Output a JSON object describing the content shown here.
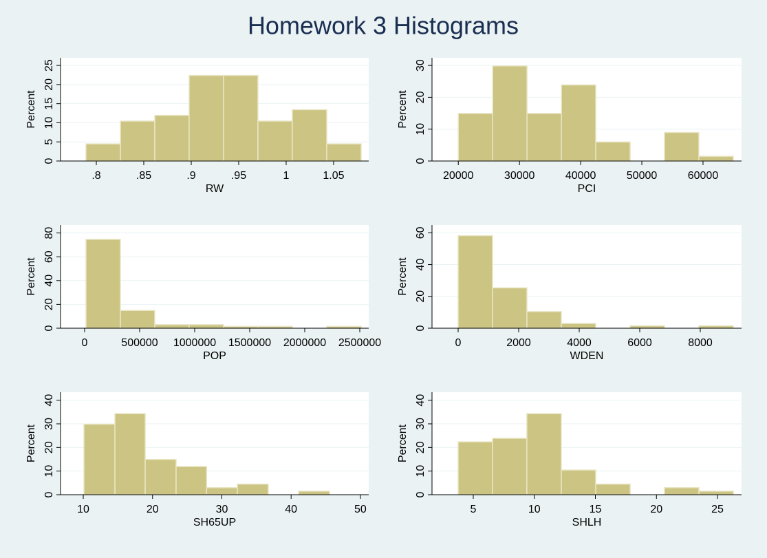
{
  "title": "Homework 3 Histograms",
  "chart_data": [
    {
      "type": "histogram",
      "xlabel": "RW",
      "ylabel": "Percent",
      "color": "#ccc482",
      "bins": [
        0.7891,
        0.8254,
        0.8616,
        0.8978,
        0.9341,
        0.9703,
        1.0065,
        1.0428,
        1.079
      ],
      "values": [
        4.48,
        10.45,
        11.94,
        22.39,
        22.39,
        10.45,
        13.43,
        4.48
      ],
      "xlim": [
        0.7623,
        1.087
      ],
      "ylim": [
        0,
        27
      ],
      "xticks": [
        {
          "value": 0.8,
          "label": ".8"
        },
        {
          "value": 0.85,
          "label": ".85"
        },
        {
          "value": 0.9,
          "label": ".9"
        },
        {
          "value": 0.95,
          "label": ".95"
        },
        1,
        1.05
      ],
      "yticks": [
        0,
        5,
        10,
        15,
        20,
        25
      ],
      "grid": true
    },
    {
      "type": "histogram",
      "xlabel": "PCI",
      "ylabel": "Percent",
      "color": "#ccc482",
      "bins": [
        20000,
        25618,
        31236,
        36854,
        42472,
        48090,
        53708,
        59326,
        64944
      ],
      "values": [
        14.93,
        29.85,
        14.93,
        23.88,
        5.97,
        0,
        8.96,
        1.49
      ],
      "xlim": [
        15700,
        66300
      ],
      "ylim": [
        0,
        32.4
      ],
      "xticks": [
        20000,
        30000,
        40000,
        50000,
        60000
      ],
      "yticks": [
        0,
        10,
        20,
        30
      ],
      "grid": true
    },
    {
      "type": "histogram",
      "xlabel": "POP",
      "ylabel": "Percent",
      "color": "#ccc482",
      "bins": [
        12500,
        325000,
        637500,
        950000,
        1262500,
        1575000,
        1887500,
        2200000,
        2512500
      ],
      "values": [
        74.63,
        14.93,
        2.99,
        2.99,
        1.49,
        1.49,
        0,
        1.49
      ],
      "xlim": [
        -218750,
        2581250
      ],
      "ylim": [
        0,
        86.7
      ],
      "xticks": [
        0,
        500000,
        1000000,
        1500000,
        2000000,
        2500000
      ],
      "yticks": [
        0,
        20,
        40,
        60,
        80
      ],
      "grid": true
    },
    {
      "type": "histogram",
      "xlabel": "WDEN",
      "ylabel": "Percent",
      "color": "#ccc482",
      "bins": [
        0,
        1136,
        2273,
        3409,
        4545,
        5682,
        6818,
        7955,
        9091
      ],
      "values": [
        58.21,
        25.37,
        10.45,
        2.99,
        0,
        1.49,
        0,
        1.49
      ],
      "xlim": [
        -864,
        9364
      ],
      "ylim": [
        0,
        64.9
      ],
      "xticks": [
        0,
        2000,
        4000,
        6000,
        8000
      ],
      "yticks": [
        0,
        20,
        40,
        60
      ],
      "grid": true
    },
    {
      "type": "histogram",
      "xlabel": "SH65UP",
      "ylabel": "Percent",
      "color": "#ccc482",
      "bins": [
        10.1,
        14.57,
        18.94,
        23.4,
        27.8,
        32.24,
        36.7,
        41.08,
        45.55
      ],
      "values": [
        29.85,
        34.33,
        14.93,
        11.94,
        2.99,
        4.48,
        0,
        1.49
      ],
      "xlim": [
        6.72,
        51.2
      ],
      "ylim": [
        0,
        43.4
      ],
      "xticks": [
        10,
        20,
        30,
        40,
        50
      ],
      "yticks": [
        0,
        10,
        20,
        30,
        40
      ],
      "grid": true
    },
    {
      "type": "histogram",
      "xlabel": "SHLH",
      "ylabel": "Percent",
      "color": "#ccc482",
      "bins": [
        3.76,
        6.58,
        9.39,
        12.21,
        15.03,
        17.85,
        20.66,
        23.48,
        26.3
      ],
      "values": [
        22.39,
        23.88,
        34.33,
        10.45,
        4.48,
        0,
        2.99,
        1.49
      ],
      "xlim": [
        1.62,
        26.97
      ],
      "ylim": [
        0,
        43.4
      ],
      "xticks": [
        5,
        10,
        15,
        20,
        25
      ],
      "yticks": [
        0,
        10,
        20,
        30,
        40
      ],
      "grid": true
    }
  ]
}
